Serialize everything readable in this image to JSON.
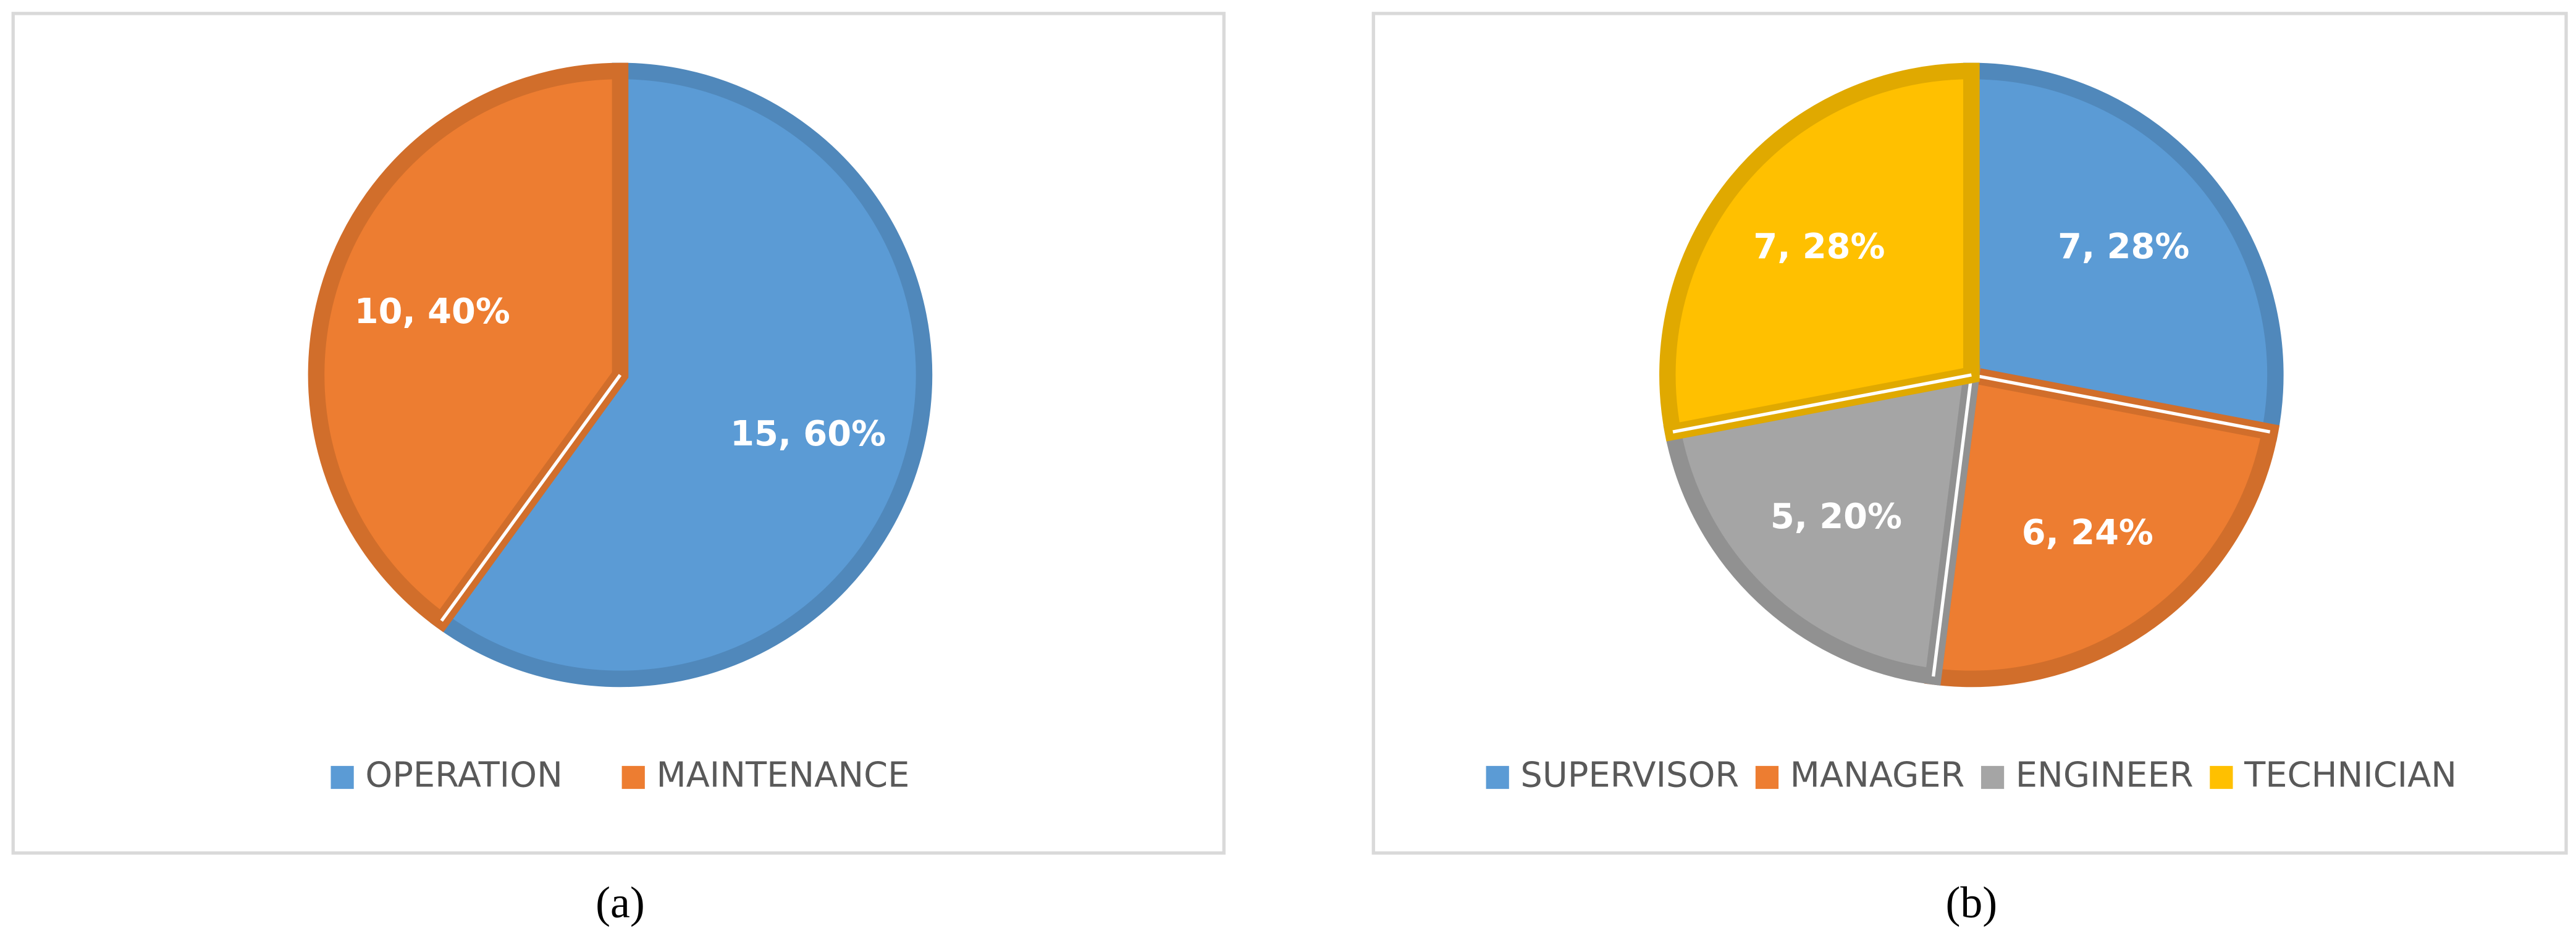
{
  "chart_data": [
    {
      "type": "pie",
      "caption": "(a)",
      "categories": [
        "OPERATION",
        "MAINTENANCE"
      ],
      "values": [
        15,
        10
      ],
      "value_labels": [
        "15, 60%",
        "10, 40%"
      ],
      "colors": [
        "#5B9BD5",
        "#ED7D31"
      ],
      "legend": "bottom"
    },
    {
      "type": "pie",
      "caption": "(b)",
      "categories": [
        "SUPERVISOR",
        "MANAGER",
        "ENGINEER",
        "TECHNICIAN"
      ],
      "values": [
        7,
        6,
        5,
        7
      ],
      "value_labels": [
        "7, 28%",
        "6, 24%",
        "5, 20%",
        "7, 28%"
      ],
      "colors": [
        "#5B9BD5",
        "#ED7D31",
        "#A5A5A5",
        "#FFC000"
      ],
      "legend": "bottom"
    }
  ]
}
